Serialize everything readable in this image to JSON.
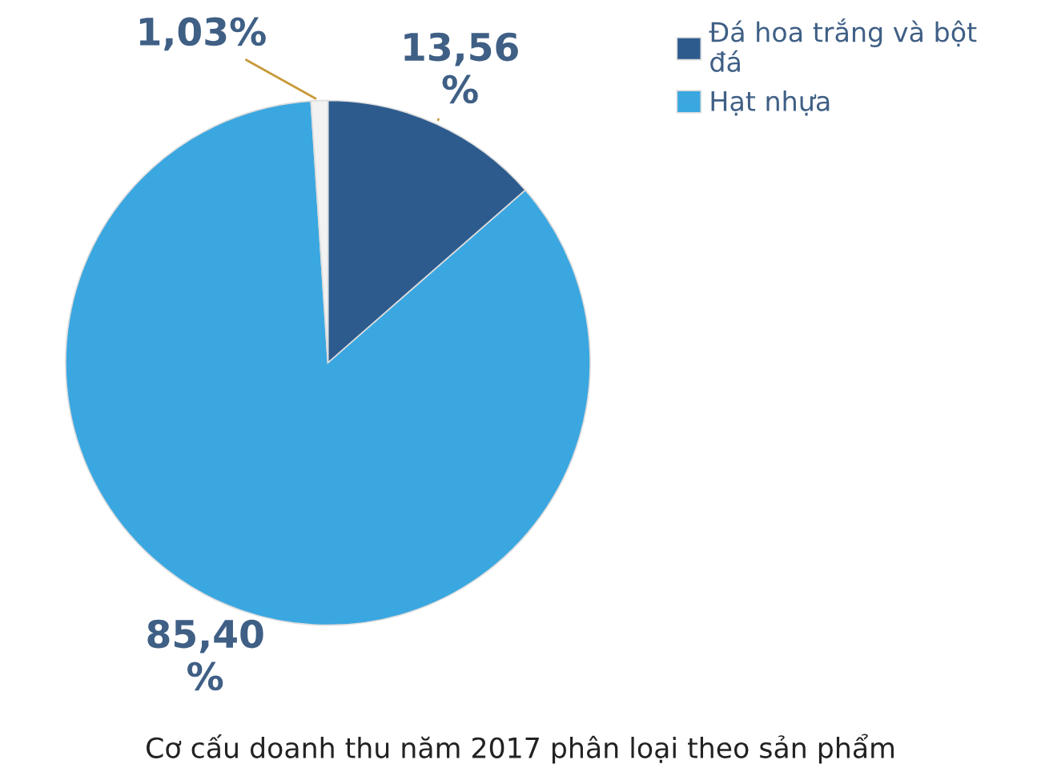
{
  "chart_data": {
    "type": "pie",
    "title": "Cơ cấu doanh thu năm 2017 phân loại theo sản phẩm",
    "categories": [
      "Đá hoa trắng và bột đá",
      "Hạt nhựa",
      null
    ],
    "values": [
      13.56,
      85.4,
      1.03
    ],
    "colors": [
      "#2d5b8e",
      "#3ba7e0",
      "#f2f2f2"
    ],
    "value_labels": [
      "13,56 %",
      "85,40 %",
      "1,03%"
    ],
    "legend": "top right"
  }
}
